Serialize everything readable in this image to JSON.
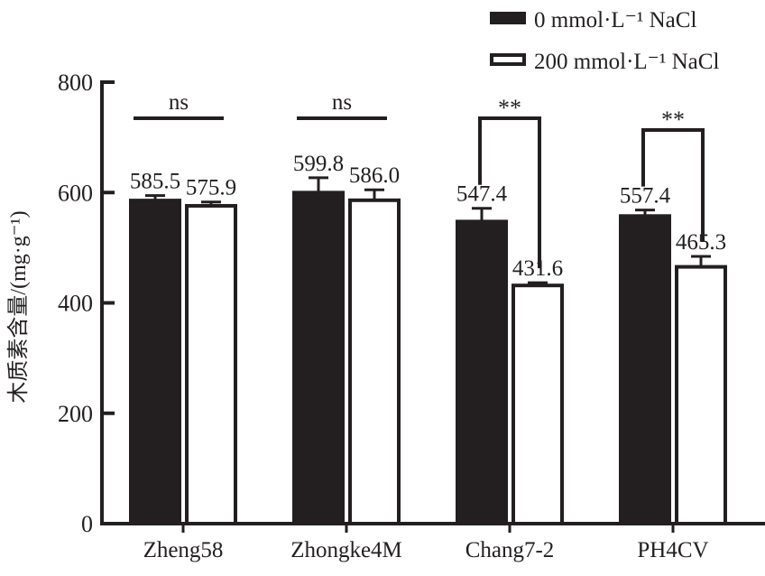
{
  "chart_data": {
    "type": "bar",
    "title": "",
    "xlabel": "",
    "ylabel": "木质素含量/(mg·g⁻¹)",
    "ylim": [
      0,
      800
    ],
    "yticks": [
      "0",
      "200",
      "400",
      "600",
      "800"
    ],
    "grid": false,
    "legend_position": "top-right",
    "categories": [
      "Zheng58",
      "Zhongke4M",
      "Chang7-2",
      "PH4CV"
    ],
    "series": [
      {
        "name": "0 mmol·L⁻¹ NaCl",
        "fill": "#231f20",
        "values": [
          585.5,
          599.8,
          547.4,
          557.4
        ],
        "errors": [
          9,
          27,
          24,
          11
        ],
        "labels": [
          "585.5",
          "599.8",
          "547.4",
          "557.4"
        ]
      },
      {
        "name": "200 mmol·L⁻¹ NaCl",
        "fill": "#ffffff",
        "values": [
          575.9,
          586.0,
          431.6,
          465.3
        ],
        "errors": [
          7,
          19,
          5,
          19
        ],
        "labels": [
          "575.9",
          "586.0",
          "431.6",
          "465.3"
        ]
      }
    ],
    "significance": [
      "ns",
      "ns",
      "**",
      "**"
    ]
  }
}
